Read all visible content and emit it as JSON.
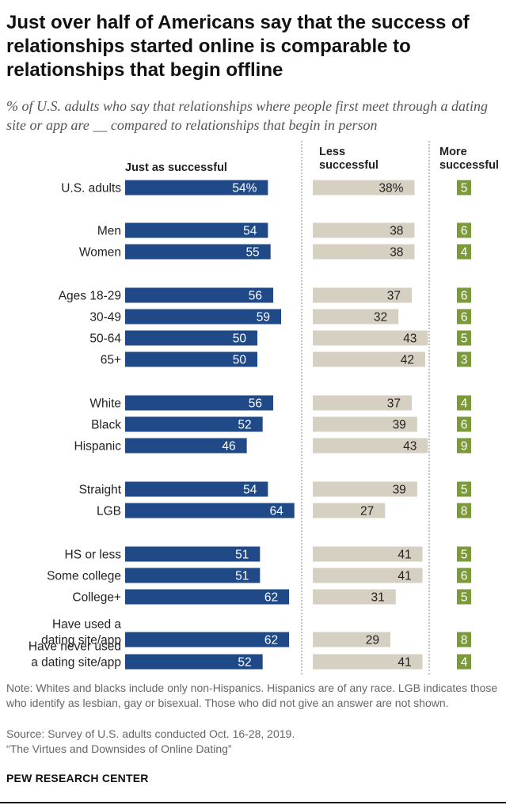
{
  "title": "Just over half of Americans say that the success of relationships started online is comparable to relationships that begin offline",
  "subtitle": "% of U.S. adults who say that relationships where people first meet through a dating site or app are __ compared to relationships that begin in person",
  "chart_data": {
    "type": "bar",
    "orientation": "horizontal",
    "series": [
      {
        "name": "Just as successful",
        "color": "#1f4a87"
      },
      {
        "name": "Less successful",
        "color": "#d6d0c2"
      },
      {
        "name": "More successful",
        "color": "#7d9a3b"
      }
    ],
    "rows": [
      {
        "label": "U.S. adults",
        "just": 54,
        "less": 38,
        "more": 5,
        "just_label": "54%",
        "less_label": "38%",
        "more_label": "5"
      },
      {
        "label": "Men",
        "just": 54,
        "less": 38,
        "more": 6,
        "just_label": "54",
        "less_label": "38",
        "more_label": "6"
      },
      {
        "label": "Women",
        "just": 55,
        "less": 38,
        "more": 4,
        "just_label": "55",
        "less_label": "38",
        "more_label": "4"
      },
      {
        "label": "Ages 18-29",
        "just": 56,
        "less": 37,
        "more": 6,
        "just_label": "56",
        "less_label": "37",
        "more_label": "6"
      },
      {
        "label": "30-49",
        "just": 59,
        "less": 32,
        "more": 6,
        "just_label": "59",
        "less_label": "32",
        "more_label": "6"
      },
      {
        "label": "50-64",
        "just": 50,
        "less": 43,
        "more": 5,
        "just_label": "50",
        "less_label": "43",
        "more_label": "5"
      },
      {
        "label": "65+",
        "just": 50,
        "less": 42,
        "more": 3,
        "just_label": "50",
        "less_label": "42",
        "more_label": "3"
      },
      {
        "label": "White",
        "just": 56,
        "less": 37,
        "more": 4,
        "just_label": "56",
        "less_label": "37",
        "more_label": "4"
      },
      {
        "label": "Black",
        "just": 52,
        "less": 39,
        "more": 6,
        "just_label": "52",
        "less_label": "39",
        "more_label": "6"
      },
      {
        "label": "Hispanic",
        "just": 46,
        "less": 43,
        "more": 9,
        "just_label": "46",
        "less_label": "43",
        "more_label": "9"
      },
      {
        "label": "Straight",
        "just": 54,
        "less": 39,
        "more": 5,
        "just_label": "54",
        "less_label": "39",
        "more_label": "5"
      },
      {
        "label": "LGB",
        "just": 64,
        "less": 27,
        "more": 8,
        "just_label": "64",
        "less_label": "27",
        "more_label": "8"
      },
      {
        "label": "HS or less",
        "just": 51,
        "less": 41,
        "more": 5,
        "just_label": "51",
        "less_label": "41",
        "more_label": "5"
      },
      {
        "label": "Some college",
        "just": 51,
        "less": 41,
        "more": 6,
        "just_label": "51",
        "less_label": "41",
        "more_label": "6"
      },
      {
        "label": "College+",
        "just": 62,
        "less": 31,
        "more": 5,
        "just_label": "62",
        "less_label": "31",
        "more_label": "5"
      },
      {
        "label": [
          "Have used a",
          "dating site/app"
        ],
        "just": 62,
        "less": 29,
        "more": 8,
        "just_label": "62",
        "less_label": "29",
        "more_label": "8"
      },
      {
        "label": [
          "Have never used",
          "a dating site/app"
        ],
        "just": 52,
        "less": 41,
        "more": 4,
        "just_label": "52",
        "less_label": "41",
        "more_label": "4"
      }
    ]
  },
  "column_headers": {
    "just": "Just as successful",
    "less_line1": "Less",
    "less_line2": "successful",
    "more_line1": "More",
    "more_line2": "successful"
  },
  "notes": {
    "note": "Note: Whites and blacks include only non-Hispanics. Hispanics are of any race. LGB indicates those who identify as lesbian, gay or bisexual. Those who did not give an answer are not shown.",
    "source": "Source: Survey of U.S. adults conducted Oct. 16-28, 2019.",
    "report": "“The Virtues and Downsides of Online Dating”"
  },
  "brand": "PEW RESEARCH CENTER"
}
